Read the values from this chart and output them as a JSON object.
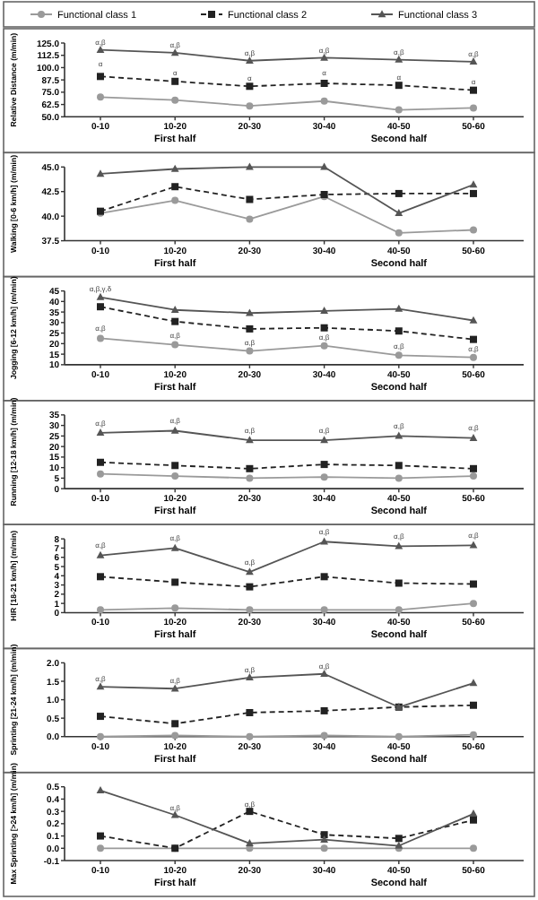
{
  "chart_data": [
    {
      "type": "line",
      "ylabel": "Relative Distance (m/min)",
      "categories": [
        "0-10",
        "10-20",
        "20-30",
        "30-40",
        "40-50",
        "50-60"
      ],
      "legend": "top",
      "ylim": [
        50,
        125
      ],
      "yticks": [
        {
          "value": 50,
          "label": "50.0"
        },
        {
          "value": 62.5,
          "label": "62.5"
        },
        {
          "value": 75,
          "label": "75.0"
        },
        {
          "value": 87.5,
          "label": "87.5"
        },
        {
          "value": 100,
          "label": "100.0"
        },
        {
          "value": 112.5,
          "label": "112.5"
        },
        {
          "value": 125,
          "label": "125.0"
        }
      ],
      "series": [
        {
          "name": "Functional class 1",
          "color": "#9a9a9a",
          "marker": "circle",
          "line_style": "solid",
          "values": [
            70,
            67,
            61,
            66,
            57,
            59
          ]
        },
        {
          "name": "Functional class 2",
          "color": "#222222",
          "marker": "square",
          "line_style": "dashed",
          "values": [
            91,
            86,
            81,
            84,
            82,
            77
          ]
        },
        {
          "name": "Functional class 3",
          "color": "#555555",
          "marker": "triangle",
          "line_style": "solid",
          "values": [
            118,
            115,
            107,
            110,
            108,
            106
          ]
        }
      ],
      "annotations": [
        "First half",
        "Second half",
        {
          "text": "α,β",
          "x": "0-10",
          "y": 123
        },
        {
          "text": "α,β",
          "x": "10-20",
          "y": 120
        },
        {
          "text": "α,β",
          "x": "20-30",
          "y": 112
        },
        {
          "text": "α,β",
          "x": "30-40",
          "y": 115
        },
        {
          "text": "α,β",
          "x": "40-50",
          "y": 113
        },
        {
          "text": "α,β",
          "x": "50-60",
          "y": 111
        },
        {
          "text": "α",
          "x": "0-10",
          "y": 101
        },
        {
          "text": "α",
          "x": "10-20",
          "y": 92
        },
        {
          "text": "α",
          "x": "20-30",
          "y": 87
        },
        {
          "text": "α",
          "x": "30-40",
          "y": 92
        },
        {
          "text": "α",
          "x": "40-50",
          "y": 88
        },
        {
          "text": "α",
          "x": "50-60",
          "y": 83
        }
      ]
    },
    {
      "type": "line",
      "ylabel": "Walking [0-6 km/h] (m/min)",
      "categories": [
        "0-10",
        "10-20",
        "20-30",
        "30-40",
        "40-50",
        "50-60"
      ],
      "ylim": [
        37.5,
        45
      ],
      "yticks": [
        {
          "value": 37.5,
          "label": "37.5"
        },
        {
          "value": 40,
          "label": "40.0"
        },
        {
          "value": 42.5,
          "label": "42.5"
        },
        {
          "value": 45,
          "label": "45.0"
        }
      ],
      "series": [
        {
          "color": "#9a9a9a",
          "marker": "circle",
          "line_style": "solid",
          "values": [
            40.3,
            41.6,
            39.7,
            42,
            38.3,
            38.6
          ]
        },
        {
          "color": "#222222",
          "marker": "square",
          "line_style": "dashed",
          "values": [
            40.5,
            43,
            41.7,
            42.2,
            42.3,
            42.3
          ]
        },
        {
          "color": "#555555",
          "marker": "triangle",
          "line_style": "solid",
          "values": [
            44.3,
            44.8,
            45,
            45,
            40.3,
            43.2
          ]
        }
      ],
      "annotations": [
        "First half",
        "Second half"
      ]
    },
    {
      "type": "line",
      "ylabel": "Jogging [6-12 km/h] (m/min)",
      "categories": [
        "0-10",
        "10-20",
        "20-30",
        "30-40",
        "40-50",
        "50-60"
      ],
      "ylim": [
        10,
        45
      ],
      "yticks": [
        10,
        15,
        20,
        25,
        30,
        35,
        40,
        45
      ],
      "series": [
        {
          "color": "#9a9a9a",
          "marker": "circle",
          "line_style": "solid",
          "values": [
            22.5,
            19.5,
            16.5,
            19,
            14.5,
            13.5
          ]
        },
        {
          "color": "#222222",
          "marker": "square",
          "line_style": "dashed",
          "values": [
            37.5,
            30.5,
            27,
            27.5,
            26,
            22
          ]
        },
        {
          "color": "#555555",
          "marker": "triangle",
          "line_style": "solid",
          "values": [
            42,
            36,
            34.5,
            35.5,
            36.5,
            31
          ]
        }
      ],
      "annotations": [
        "First half",
        "Second half",
        {
          "text": "α,β,γ,δ",
          "x": "0-10",
          "y": 45
        },
        {
          "text": "α,β",
          "x": "0-10",
          "y": 26
        },
        {
          "text": "α,β",
          "x": "10-20",
          "y": 22.5
        },
        {
          "text": "α,β",
          "x": "20-30",
          "y": 19.5
        },
        {
          "text": "α,β",
          "x": "30-40",
          "y": 22
        },
        {
          "text": "α,β",
          "x": "40-50",
          "y": 17.5
        },
        {
          "text": "α,β",
          "x": "50-60",
          "y": 16.5
        }
      ]
    },
    {
      "type": "line",
      "ylabel": "Running [12-18 km/h] (m/min)",
      "categories": [
        "0-10",
        "10-20",
        "20-30",
        "30-40",
        "40-50",
        "50-60"
      ],
      "ylim": [
        0,
        35
      ],
      "yticks": [
        0,
        5,
        10,
        15,
        20,
        25,
        30,
        35
      ],
      "series": [
        {
          "color": "#9a9a9a",
          "marker": "circle",
          "line_style": "solid",
          "values": [
            7,
            6,
            5,
            5.5,
            5,
            6
          ]
        },
        {
          "color": "#222222",
          "marker": "square",
          "line_style": "dashed",
          "values": [
            12.5,
            11,
            9.5,
            11.5,
            11,
            9.5
          ]
        },
        {
          "color": "#555555",
          "marker": "triangle",
          "line_style": "solid",
          "values": [
            26.5,
            27.5,
            23,
            23,
            25,
            24
          ]
        }
      ],
      "annotations": [
        "First half",
        "Second half",
        {
          "text": "α,β",
          "x": "0-10",
          "y": 30
        },
        {
          "text": "α,β",
          "x": "10-20",
          "y": 31
        },
        {
          "text": "α,β",
          "x": "20-30",
          "y": 26.5
        },
        {
          "text": "α,β",
          "x": "30-40",
          "y": 26.5
        },
        {
          "text": "α,β",
          "x": "40-50",
          "y": 28.5
        },
        {
          "text": "α,β",
          "x": "50-60",
          "y": 27.5
        }
      ]
    },
    {
      "type": "line",
      "ylabel": "HIR [18-21 km/h] (m/min)",
      "categories": [
        "0-10",
        "10-20",
        "20-30",
        "30-40",
        "40-50",
        "50-60"
      ],
      "ylim": [
        0,
        8
      ],
      "yticks": [
        0,
        1,
        2,
        3,
        4,
        5,
        6,
        7,
        8
      ],
      "series": [
        {
          "color": "#9a9a9a",
          "marker": "circle",
          "line_style": "solid",
          "values": [
            0.3,
            0.5,
            0.3,
            0.3,
            0.3,
            1
          ]
        },
        {
          "color": "#222222",
          "marker": "square",
          "line_style": "dashed",
          "values": [
            3.9,
            3.3,
            2.8,
            3.9,
            3.2,
            3.1
          ]
        },
        {
          "color": "#555555",
          "marker": "triangle",
          "line_style": "solid",
          "values": [
            6.2,
            7,
            4.4,
            7.7,
            7.2,
            7.3
          ]
        }
      ],
      "annotations": [
        "First half",
        "Second half",
        {
          "text": "α,β",
          "x": "0-10",
          "y": 7
        },
        {
          "text": "α,β",
          "x": "10-20",
          "y": 7.8
        },
        {
          "text": "α,β",
          "x": "20-30",
          "y": 5.2
        },
        {
          "text": "α,β",
          "x": "30-40",
          "y": 8.5
        },
        {
          "text": "α,β",
          "x": "40-50",
          "y": 8
        },
        {
          "text": "α,β",
          "x": "50-60",
          "y": 8.1
        }
      ]
    },
    {
      "type": "line",
      "ylabel": "Sprinting [21-24 km/h] (m/min)",
      "categories": [
        "0-10",
        "10-20",
        "20-30",
        "30-40",
        "40-50",
        "50-60"
      ],
      "ylim": [
        0,
        2
      ],
      "yticks": [
        {
          "value": 0,
          "label": "0.0"
        },
        {
          "value": 0.5,
          "label": "0.5"
        },
        {
          "value": 1,
          "label": "1.0"
        },
        {
          "value": 1.5,
          "label": "1.5"
        },
        {
          "value": 2,
          "label": "2.0"
        }
      ],
      "series": [
        {
          "color": "#9a9a9a",
          "marker": "circle",
          "line_style": "solid",
          "values": [
            0,
            0.03,
            0,
            0.03,
            0,
            0.05
          ]
        },
        {
          "color": "#222222",
          "marker": "square",
          "line_style": "dashed",
          "values": [
            0.55,
            0.35,
            0.65,
            0.7,
            0.8,
            0.85
          ]
        },
        {
          "color": "#555555",
          "marker": "triangle",
          "line_style": "solid",
          "values": [
            1.35,
            1.3,
            1.6,
            1.7,
            0.8,
            1.45
          ]
        }
      ],
      "annotations": [
        "First half",
        "Second half",
        {
          "text": "α,β",
          "x": "0-10",
          "y": 1.5
        },
        {
          "text": "α,β",
          "x": "10-20",
          "y": 1.45
        },
        {
          "text": "α,β",
          "x": "20-30",
          "y": 1.75
        },
        {
          "text": "α,β",
          "x": "30-40",
          "y": 1.85
        }
      ]
    },
    {
      "type": "line",
      "ylabel": "Max Sprinting [>24 km/h] (m/min)",
      "categories": [
        "0-10",
        "10-20",
        "20-30",
        "30-40",
        "40-50",
        "50-60"
      ],
      "ylim": [
        -0.1,
        0.5
      ],
      "yticks": [
        -0.1,
        {
          "value": 0,
          "label": "0.0"
        },
        0.1,
        0.2,
        0.3,
        0.4,
        0.5
      ],
      "series": [
        {
          "color": "#9a9a9a",
          "marker": "circle",
          "line_style": "solid",
          "values": [
            0,
            0,
            0,
            0,
            0,
            0
          ]
        },
        {
          "color": "#222222",
          "marker": "square",
          "line_style": "dashed",
          "values": [
            0.1,
            0,
            0.3,
            0.11,
            0.08,
            0.23
          ]
        },
        {
          "color": "#555555",
          "marker": "triangle",
          "line_style": "solid",
          "values": [
            0.47,
            0.27,
            0.04,
            0.07,
            0.02,
            0.28
          ]
        }
      ],
      "annotations": [
        "First half",
        "Second half",
        {
          "text": "α,β",
          "x": "10-20",
          "y": 0.31
        },
        {
          "text": "α,β",
          "x": "20-30",
          "y": 0.34
        }
      ]
    }
  ]
}
